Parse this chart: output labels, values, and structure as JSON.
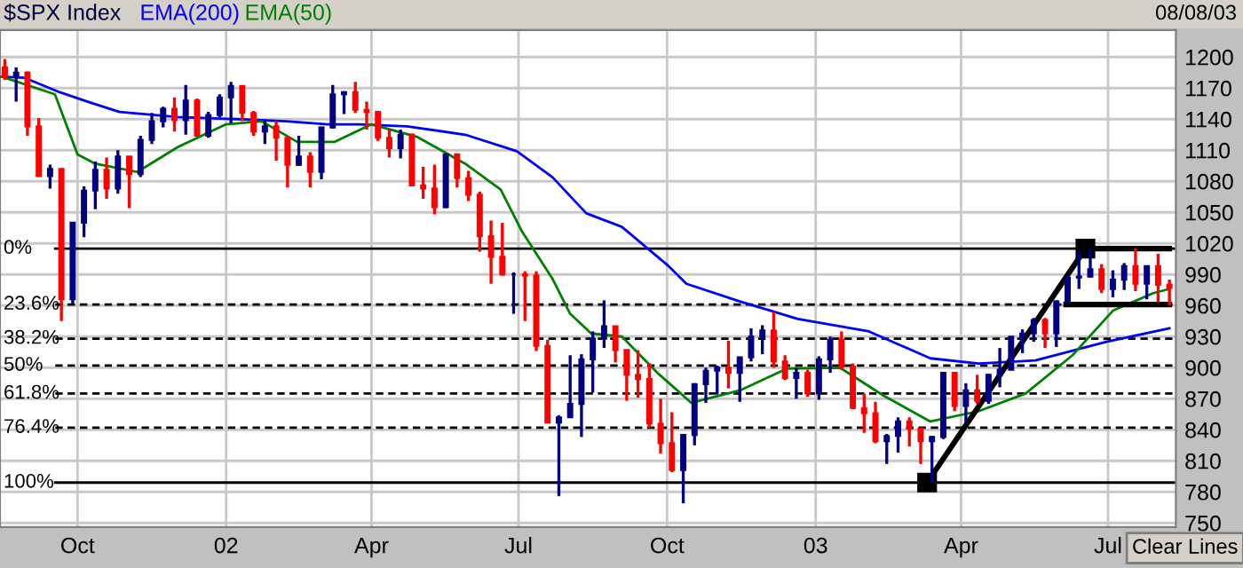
{
  "chart_data": {
    "type": "candlestick",
    "title": "$SPX Index",
    "x": [
      "2001-08-17",
      "2001-08-24",
      "2001-08-31",
      "2001-09-07",
      "2001-09-14",
      "2001-09-21",
      "2001-09-28",
      "2001-10-05",
      "2001-10-12",
      "2001-10-19",
      "2001-10-26",
      "2001-11-02",
      "2001-11-09",
      "2001-11-16",
      "2001-11-23",
      "2001-11-30",
      "2001-12-07",
      "2001-12-14",
      "2001-12-21",
      "2001-12-28",
      "2002-01-04",
      "2002-01-11",
      "2002-01-18",
      "2002-01-25",
      "2002-02-01",
      "2002-02-08",
      "2002-02-15",
      "2002-02-22",
      "2002-03-01",
      "2002-03-08",
      "2002-03-15",
      "2002-03-22",
      "2002-03-29",
      "2002-04-05",
      "2002-04-12",
      "2002-04-19",
      "2002-04-26",
      "2002-05-03",
      "2002-05-10",
      "2002-05-17",
      "2002-05-24",
      "2002-05-31",
      "2002-06-07",
      "2002-06-14",
      "2002-06-21",
      "2002-06-28",
      "2002-07-05",
      "2002-07-12",
      "2002-07-19",
      "2002-07-26",
      "2002-08-02",
      "2002-08-09",
      "2002-08-16",
      "2002-08-23",
      "2002-08-30",
      "2002-09-06",
      "2002-09-13",
      "2002-09-20",
      "2002-09-27",
      "2002-10-04",
      "2002-10-11",
      "2002-10-18",
      "2002-10-25",
      "2002-11-01",
      "2002-11-08",
      "2002-11-15",
      "2002-11-22",
      "2002-11-29",
      "2002-12-06",
      "2002-12-13",
      "2002-12-20",
      "2002-12-27",
      "2003-01-03",
      "2003-01-10",
      "2003-01-17",
      "2003-01-24",
      "2003-01-31",
      "2003-02-07",
      "2003-02-14",
      "2003-02-21",
      "2003-02-28",
      "2003-03-07",
      "2003-03-14",
      "2003-03-21",
      "2003-03-28",
      "2003-04-04",
      "2003-04-11",
      "2003-04-18",
      "2003-04-25",
      "2003-05-02",
      "2003-05-09",
      "2003-05-16",
      "2003-05-23",
      "2003-05-30",
      "2003-06-06",
      "2003-06-13",
      "2003-06-20",
      "2003-06-27",
      "2003-07-04",
      "2003-07-11",
      "2003-07-18",
      "2003-07-25",
      "2003-08-01",
      "2003-08-08"
    ],
    "ohlc": [
      [
        1190,
        1198,
        1178,
        1181
      ],
      [
        1181,
        1190,
        1157,
        1185
      ],
      [
        1185,
        1186,
        1124,
        1133
      ],
      [
        1133,
        1141,
        1085,
        1085
      ],
      [
        1085,
        1096,
        1073,
        1092
      ],
      [
        1092,
        1092,
        945,
        966
      ],
      [
        966,
        1040,
        962,
        1040
      ],
      [
        1040,
        1075,
        1026,
        1071
      ],
      [
        1071,
        1099,
        1053,
        1091
      ],
      [
        1091,
        1103,
        1063,
        1073
      ],
      [
        1073,
        1110,
        1068,
        1104
      ],
      [
        1104,
        1104,
        1054,
        1087
      ],
      [
        1087,
        1124,
        1084,
        1120
      ],
      [
        1120,
        1146,
        1116,
        1138
      ],
      [
        1138,
        1152,
        1132,
        1150
      ],
      [
        1150,
        1161,
        1128,
        1139
      ],
      [
        1139,
        1173,
        1125,
        1158
      ],
      [
        1158,
        1160,
        1124,
        1124
      ],
      [
        1124,
        1147,
        1122,
        1144
      ],
      [
        1144,
        1164,
        1142,
        1161
      ],
      [
        1161,
        1176,
        1136,
        1172
      ],
      [
        1172,
        1172,
        1138,
        1146
      ],
      [
        1146,
        1148,
        1124,
        1128
      ],
      [
        1128,
        1139,
        1116,
        1133
      ],
      [
        1133,
        1138,
        1100,
        1122
      ],
      [
        1122,
        1122,
        1074,
        1096
      ],
      [
        1096,
        1124,
        1095,
        1104
      ],
      [
        1104,
        1108,
        1074,
        1089
      ],
      [
        1089,
        1132,
        1082,
        1132
      ],
      [
        1132,
        1173,
        1131,
        1164
      ],
      [
        1164,
        1167,
        1145,
        1166
      ],
      [
        1166,
        1176,
        1146,
        1149
      ],
      [
        1149,
        1157,
        1130,
        1147
      ],
      [
        1147,
        1148,
        1119,
        1122
      ],
      [
        1122,
        1130,
        1103,
        1112
      ],
      [
        1112,
        1130,
        1102,
        1125
      ],
      [
        1125,
        1126,
        1076,
        1076
      ],
      [
        1076,
        1094,
        1063,
        1073
      ],
      [
        1073,
        1096,
        1048,
        1055
      ],
      [
        1055,
        1107,
        1054,
        1106
      ],
      [
        1106,
        1106,
        1074,
        1083
      ],
      [
        1083,
        1090,
        1061,
        1067
      ],
      [
        1067,
        1070,
        1012,
        1027
      ],
      [
        1027,
        1042,
        981,
        1007
      ],
      [
        1007,
        1040,
        989,
        990
      ],
      [
        990,
        992,
        952,
        990
      ],
      [
        990,
        993,
        945,
        989
      ],
      [
        989,
        993,
        916,
        921
      ],
      [
        921,
        927,
        847,
        847
      ],
      [
        847,
        854,
        776,
        852
      ],
      [
        852,
        912,
        852,
        865
      ],
      [
        865,
        913,
        833,
        908
      ],
      [
        908,
        935,
        876,
        928
      ],
      [
        928,
        965,
        919,
        940
      ],
      [
        940,
        940,
        905,
        917
      ],
      [
        917,
        917,
        868,
        893
      ],
      [
        893,
        917,
        871,
        889
      ],
      [
        889,
        904,
        842,
        846
      ],
      [
        846,
        870,
        817,
        827
      ],
      [
        827,
        857,
        799,
        801
      ],
      [
        801,
        836,
        769,
        835
      ],
      [
        835,
        885,
        825,
        884
      ],
      [
        884,
        900,
        866,
        897
      ],
      [
        897,
        902,
        874,
        900
      ],
      [
        900,
        926,
        880,
        895
      ],
      [
        895,
        910,
        867,
        910
      ],
      [
        910,
        938,
        906,
        930
      ],
      [
        930,
        941,
        913,
        936
      ],
      [
        936,
        954,
        900,
        906
      ],
      [
        906,
        912,
        888,
        890
      ],
      [
        890,
        900,
        870,
        895
      ],
      [
        895,
        898,
        872,
        875
      ],
      [
        875,
        911,
        869,
        908
      ],
      [
        908,
        930,
        895,
        927
      ],
      [
        927,
        935,
        898,
        901
      ],
      [
        901,
        904,
        860,
        861
      ],
      [
        861,
        875,
        837,
        856
      ],
      [
        856,
        867,
        827,
        829
      ],
      [
        829,
        836,
        807,
        834
      ],
      [
        834,
        852,
        818,
        848
      ],
      [
        848,
        852,
        824,
        841
      ],
      [
        841,
        842,
        807,
        829
      ],
      [
        829,
        834,
        789,
        833
      ],
      [
        833,
        896,
        831,
        895
      ],
      [
        895,
        895,
        858,
        863
      ],
      [
        863,
        885,
        847,
        878
      ],
      [
        878,
        893,
        865,
        868
      ],
      [
        868,
        894,
        865,
        893
      ],
      [
        893,
        919,
        881,
        898
      ],
      [
        898,
        930,
        898,
        930
      ],
      [
        930,
        937,
        914,
        933
      ],
      [
        933,
        948,
        925,
        946
      ],
      [
        946,
        948,
        919,
        933
      ],
      [
        933,
        965,
        920,
        964
      ],
      [
        964,
        990,
        962,
        987
      ],
      [
        987,
        1012,
        976,
        988
      ],
      [
        988,
        1015,
        987,
        995
      ],
      [
        995,
        1000,
        972,
        976
      ],
      [
        976,
        994,
        968,
        985
      ],
      [
        985,
        1001,
        975,
        998
      ],
      [
        998,
        1015,
        974,
        981
      ],
      [
        981,
        998,
        966,
        998
      ],
      [
        998,
        1010,
        963,
        980
      ],
      [
        980,
        985,
        960,
        977
      ]
    ],
    "colors": [
      "#ff0000",
      "#000080",
      "#ff0000",
      "#ff0000",
      "#000080",
      "#ff0000",
      "#000080",
      "#000080",
      "#000080",
      "#ff0000",
      "#000080",
      "#ff0000",
      "#000080",
      "#000080",
      "#000080",
      "#ff0000",
      "#000080",
      "#ff0000",
      "#000080",
      "#000080",
      "#000080",
      "#ff0000",
      "#ff0000",
      "#000080",
      "#ff0000",
      "#ff0000",
      "#000080",
      "#ff0000",
      "#000080",
      "#000080",
      "#000080",
      "#ff0000",
      "#ff0000",
      "#ff0000",
      "#ff0000",
      "#000080",
      "#ff0000",
      "#ff0000",
      "#ff0000",
      "#000080",
      "#ff0000",
      "#ff0000",
      "#ff0000",
      "#ff0000",
      "#ff0000",
      "#000080",
      "#ff0000",
      "#ff0000",
      "#ff0000",
      "#000080",
      "#000080",
      "#000080",
      "#000080",
      "#000080",
      "#ff0000",
      "#ff0000",
      "#ff0000",
      "#ff0000",
      "#ff0000",
      "#ff0000",
      "#000080",
      "#000080",
      "#000080",
      "#000080",
      "#ff0000",
      "#000080",
      "#000080",
      "#000080",
      "#ff0000",
      "#ff0000",
      "#000080",
      "#ff0000",
      "#000080",
      "#000080",
      "#ff0000",
      "#ff0000",
      "#ff0000",
      "#ff0000",
      "#000080",
      "#000080",
      "#ff0000",
      "#ff0000",
      "#000080",
      "#000080",
      "#ff0000",
      "#000080",
      "#ff0000",
      "#000080",
      "#000080",
      "#000080",
      "#000080",
      "#000080",
      "#ff0000",
      "#000080",
      "#000080",
      "#000080",
      "#000080",
      "#ff0000",
      "#000080",
      "#000080",
      "#ff0000",
      "#000080",
      "#ff0000",
      "#ff0000"
    ],
    "series": [
      {
        "name": "EMA(200)",
        "type": "line",
        "color": "#0000ff",
        "x": [
          "2001-08-15",
          "2001-08-29",
          "2001-09-20",
          "2001-10-09",
          "2001-10-27",
          "2001-12-02",
          "2002-01-08",
          "2002-02-07",
          "2002-03-05",
          "2002-03-24",
          "2002-04-23",
          "2002-05-29",
          "2002-06-30",
          "2002-07-22",
          "2002-08-12",
          "2002-09-03",
          "2002-10-02",
          "2002-10-13",
          "2002-11-15",
          "2002-12-21",
          "2003-02-03",
          "2003-03-13",
          "2003-04-12",
          "2003-05-17",
          "2003-06-30",
          "2003-08-08"
        ],
        "values": [
          1181,
          1180,
          1166,
          1156,
          1147,
          1142,
          1140,
          1138,
          1135,
          1135,
          1133,
          1125,
          1109,
          1084,
          1049,
          1036,
          998,
          981,
          964,
          947,
          935,
          909,
          904,
          907,
          925,
          938
        ]
      },
      {
        "name": "EMA(50)",
        "type": "line",
        "color": "#008000",
        "x": [
          "2001-08-15",
          "2001-09-17",
          "2001-10-01",
          "2001-10-12",
          "2001-11-07",
          "2001-12-02",
          "2002-01-01",
          "2002-01-23",
          "2002-02-14",
          "2002-03-09",
          "2002-04-01",
          "2002-04-29",
          "2002-05-29",
          "2002-06-20",
          "2002-07-03",
          "2002-07-22",
          "2002-08-02",
          "2002-08-15",
          "2002-09-03",
          "2002-09-25",
          "2002-10-16",
          "2002-11-15",
          "2002-12-14",
          "2003-01-16",
          "2003-02-12",
          "2003-03-13",
          "2003-04-12",
          "2003-05-11",
          "2003-06-09",
          "2003-07-04",
          "2003-07-29",
          "2003-08-08"
        ],
        "values": [
          1181,
          1164,
          1106,
          1097,
          1089,
          1113,
          1135,
          1138,
          1118,
          1118,
          1135,
          1123,
          1097,
          1072,
          1032,
          986,
          952,
          933,
          930,
          895,
          866,
          878,
          899,
          900,
          873,
          848,
          858,
          875,
          912,
          955,
          972,
          976
        ]
      },
      {
        "type": "line",
        "color": "#000000",
        "marker": "square",
        "x": [
          "2003-03-11",
          "2003-06-17"
        ],
        "values": [
          789,
          1015
        ]
      },
      {
        "type": "line",
        "color": "#000000",
        "x": [
          "2003-06-17",
          "2003-08-08"
        ],
        "values": [
          1015,
          1015
        ]
      },
      {
        "type": "line",
        "color": "#000000",
        "x": [
          "2003-06-05",
          "2003-08-08"
        ],
        "values": [
          961,
          961
        ]
      }
    ],
    "ref_lines": [
      {
        "axis": "y",
        "value": 1015,
        "color": "#000000",
        "line_style": "solid"
      },
      {
        "axis": "y",
        "value": 961,
        "color": "#000000",
        "line_style": "dashed"
      },
      {
        "axis": "y",
        "value": 928,
        "color": "#000000",
        "line_style": "dashed"
      },
      {
        "axis": "y",
        "value": 902,
        "color": "#000000",
        "line_style": "dashed"
      },
      {
        "axis": "y",
        "value": 875,
        "color": "#000000",
        "line_style": "dashed"
      },
      {
        "axis": "y",
        "value": 842,
        "color": "#000000",
        "line_style": "dashed"
      },
      {
        "axis": "y",
        "value": 789,
        "color": "#000000",
        "line_style": "solid"
      }
    ],
    "xlim": [
      "2001-08-14",
      "2003-08-12"
    ],
    "xticks": [
      {
        "value": "2001-10-01",
        "label": "Oct"
      },
      {
        "value": "2002-01-01",
        "label": "02"
      },
      {
        "value": "2002-04-01",
        "label": "Apr"
      },
      {
        "value": "2002-07-01",
        "label": "Jul"
      },
      {
        "value": "2002-10-01",
        "label": "Oct"
      },
      {
        "value": "2003-01-01",
        "label": "03"
      },
      {
        "value": "2003-04-01",
        "label": "Apr"
      },
      {
        "value": "2003-07-01",
        "label": "Jul"
      }
    ],
    "ylim": [
      746,
      1226
    ],
    "yticks": [
      750,
      780,
      810,
      840,
      870,
      900,
      930,
      960,
      990,
      1020,
      1050,
      1080,
      1110,
      1140,
      1170,
      1200
    ],
    "grid": true,
    "legend": "top left",
    "annotations": [
      "08/08/03",
      "Clear Lines",
      "0%",
      "23.6%",
      "38.2%",
      "50%",
      "61.8%",
      "76.4%",
      "100%"
    ]
  }
}
